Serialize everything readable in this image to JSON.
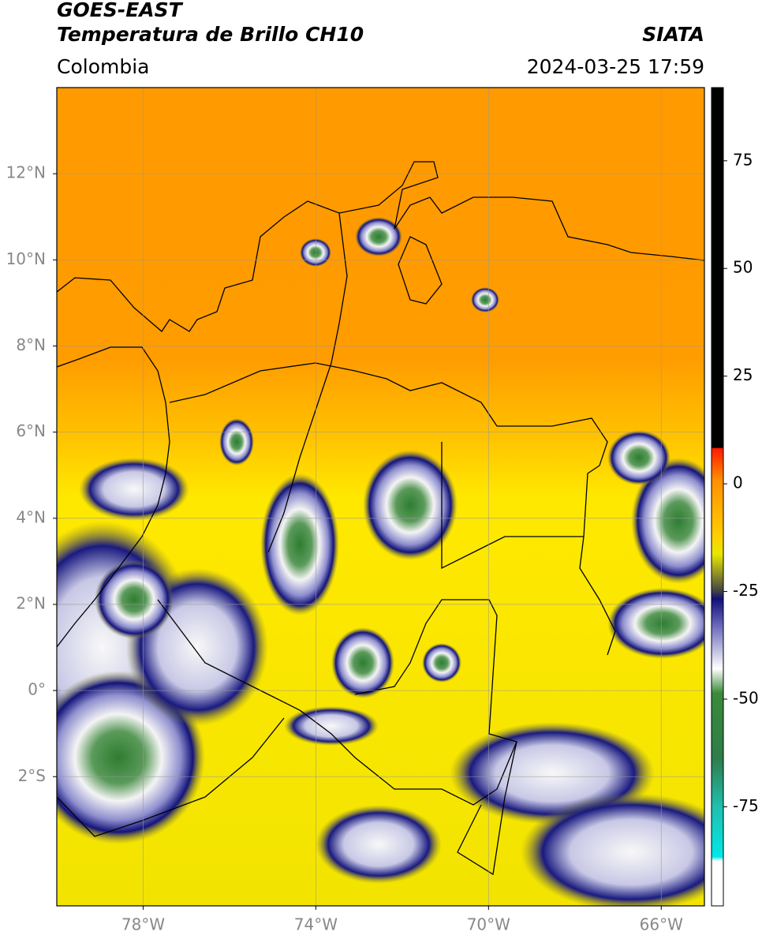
{
  "header": {
    "title": "GOES-EAST",
    "subtitle": "Temperatura de Brillo CH10",
    "source": "SIATA",
    "region": "Colombia",
    "datetime": "2024-03-25 17:59"
  },
  "map": {
    "lonlim": [
      -80,
      -65
    ],
    "latlim": [
      -5,
      14
    ],
    "xticks": [
      {
        "value": -78,
        "label": "78°W"
      },
      {
        "value": -74,
        "label": "74°W"
      },
      {
        "value": -70,
        "label": "70°W"
      },
      {
        "value": -66,
        "label": "66°W"
      }
    ],
    "yticks": [
      {
        "value": 12,
        "label": "12°N"
      },
      {
        "value": 10,
        "label": "10°N"
      },
      {
        "value": 8,
        "label": "8°N"
      },
      {
        "value": 6,
        "label": "6°N"
      },
      {
        "value": 4,
        "label": "4°N"
      },
      {
        "value": 2,
        "label": "2°N"
      },
      {
        "value": 0,
        "label": "0°"
      },
      {
        "value": -2,
        "label": "2°S"
      }
    ]
  },
  "colorbar": {
    "lim": [
      -98,
      92
    ],
    "ticks": [
      75,
      50,
      25,
      0,
      -25,
      -50,
      -75
    ]
  }
}
